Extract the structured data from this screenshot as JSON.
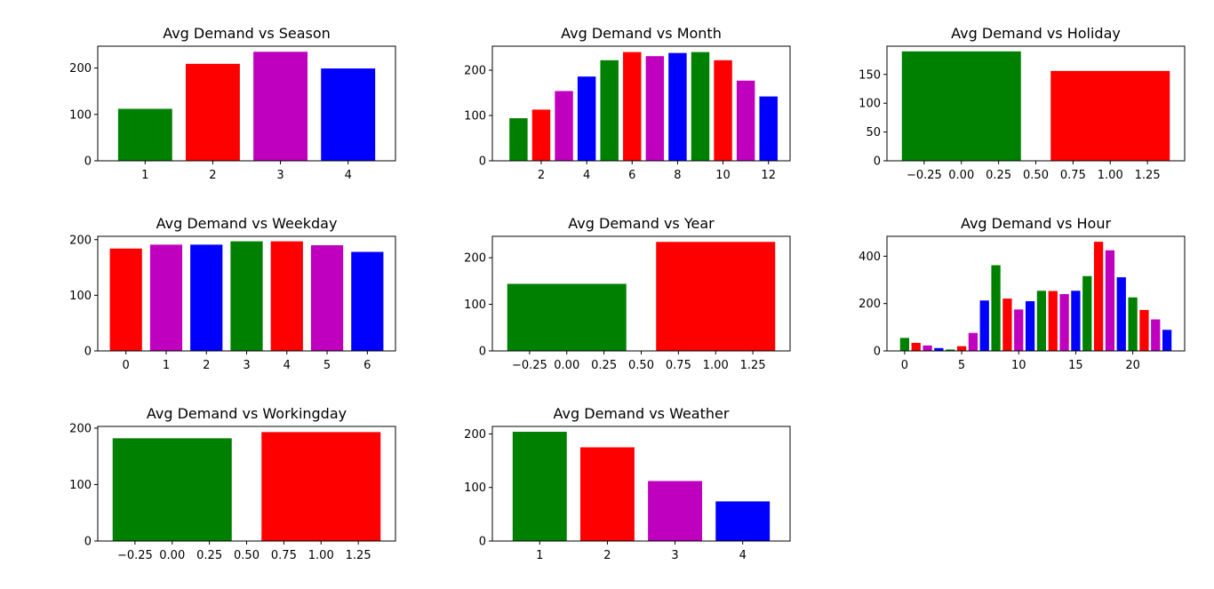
{
  "colors": {
    "green": "#008000",
    "red": "#ff0000",
    "magenta": "#bf00bf",
    "blue": "#0000ff"
  },
  "chart_data": [
    {
      "type": "bar",
      "title": "Avg Demand vs Season",
      "x": [
        1,
        2,
        3,
        4
      ],
      "values": [
        112,
        209,
        235,
        199
      ],
      "colors": [
        "green",
        "red",
        "magenta",
        "blue"
      ],
      "bar_width": 0.8,
      "xlim": [
        0.3,
        4.7
      ],
      "ylim": [
        0,
        247
      ],
      "xticks": [
        1,
        2,
        3,
        4
      ],
      "yticks": [
        0,
        100,
        200
      ],
      "grid": false
    },
    {
      "type": "bar",
      "title": "Avg Demand vs Month",
      "x": [
        1,
        2,
        3,
        4,
        5,
        6,
        7,
        8,
        9,
        10,
        11,
        12
      ],
      "values": [
        94,
        113,
        154,
        186,
        222,
        240,
        231,
        238,
        240,
        222,
        177,
        142
      ],
      "colors": [
        "green",
        "red",
        "magenta",
        "blue",
        "green",
        "red",
        "magenta",
        "blue",
        "green",
        "red",
        "magenta",
        "blue"
      ],
      "bar_width": 0.8,
      "xlim": [
        -0.15,
        12.95
      ],
      "ylim": [
        0,
        253
      ],
      "xticks": [
        2,
        4,
        6,
        8,
        10,
        12
      ],
      "yticks": [
        0,
        100,
        200
      ],
      "grid": false
    },
    {
      "type": "bar",
      "title": "Avg Demand vs Holiday",
      "x": [
        0,
        1
      ],
      "values": [
        190,
        156
      ],
      "colors": [
        "green",
        "red"
      ],
      "bar_width": 0.8,
      "xlim": [
        -0.5,
        1.5
      ],
      "ylim": [
        0,
        199
      ],
      "xticks": [
        -0.25,
        0.0,
        0.25,
        0.5,
        0.75,
        1.0,
        1.25
      ],
      "xtick_labels": [
        "−0.25",
        "0.00",
        "0.25",
        "0.50",
        "0.75",
        "1.00",
        "1.25"
      ],
      "yticks": [
        0,
        50,
        100,
        150
      ],
      "grid": false
    },
    {
      "type": "bar",
      "title": "Avg Demand vs Weekday",
      "x": [
        0,
        1,
        2,
        3,
        4,
        5,
        6
      ],
      "values": [
        184,
        191,
        191,
        197,
        197,
        190,
        178
      ],
      "colors": [
        "red",
        "magenta",
        "blue",
        "green",
        "red",
        "magenta",
        "blue"
      ],
      "bar_width": 0.8,
      "xlim": [
        -0.7,
        6.7
      ],
      "ylim": [
        0,
        206
      ],
      "xticks": [
        0,
        1,
        2,
        3,
        4,
        5,
        6
      ],
      "yticks": [
        0,
        100,
        200
      ],
      "grid": false
    },
    {
      "type": "bar",
      "title": "Avg Demand vs Year",
      "x": [
        0,
        1
      ],
      "values": [
        144,
        234
      ],
      "colors": [
        "green",
        "red"
      ],
      "bar_width": 0.8,
      "xlim": [
        -0.5,
        1.5
      ],
      "ylim": [
        0,
        246
      ],
      "xticks": [
        -0.25,
        0.0,
        0.25,
        0.5,
        0.75,
        1.0,
        1.25
      ],
      "xtick_labels": [
        "−0.25",
        "0.00",
        "0.25",
        "0.50",
        "0.75",
        "1.00",
        "1.25"
      ],
      "yticks": [
        0,
        100,
        200
      ],
      "grid": false
    },
    {
      "type": "bar",
      "title": "Avg Demand vs Hour",
      "x": [
        0,
        1,
        2,
        3,
        4,
        5,
        6,
        7,
        8,
        9,
        10,
        11,
        12,
        13,
        14,
        15,
        16,
        17,
        18,
        19,
        20,
        21,
        22,
        23
      ],
      "values": [
        55,
        34,
        23,
        12,
        6,
        20,
        76,
        213,
        362,
        221,
        175,
        210,
        254,
        253,
        240,
        254,
        316,
        461,
        425,
        311,
        226,
        173,
        133,
        89
      ],
      "colors": [
        "green",
        "red",
        "magenta",
        "blue",
        "green",
        "red",
        "magenta",
        "blue",
        "green",
        "red",
        "magenta",
        "blue",
        "green",
        "red",
        "magenta",
        "blue",
        "green",
        "red",
        "magenta",
        "blue",
        "green",
        "red",
        "magenta",
        "blue"
      ],
      "bar_width": 0.8,
      "xlim": [
        -1.55,
        24.55
      ],
      "ylim": [
        0,
        484
      ],
      "xticks": [
        0,
        5,
        10,
        15,
        20
      ],
      "yticks": [
        0,
        200,
        400
      ],
      "grid": false
    },
    {
      "type": "bar",
      "title": "Avg Demand vs Workingday",
      "x": [
        0,
        1
      ],
      "values": [
        182,
        193
      ],
      "colors": [
        "green",
        "red"
      ],
      "bar_width": 0.8,
      "xlim": [
        -0.5,
        1.5
      ],
      "ylim": [
        0,
        203
      ],
      "xticks": [
        -0.25,
        0.0,
        0.25,
        0.5,
        0.75,
        1.0,
        1.25
      ],
      "xtick_labels": [
        "−0.25",
        "0.00",
        "0.25",
        "0.50",
        "0.75",
        "1.00",
        "1.25"
      ],
      "yticks": [
        0,
        100,
        200
      ],
      "grid": false
    },
    {
      "type": "bar",
      "title": "Avg Demand vs Weather",
      "x": [
        1,
        2,
        3,
        4
      ],
      "values": [
        204,
        175,
        112,
        74
      ],
      "colors": [
        "green",
        "red",
        "magenta",
        "blue"
      ],
      "bar_width": 0.8,
      "xlim": [
        0.3,
        4.7
      ],
      "ylim": [
        0,
        214
      ],
      "xticks": [
        1,
        2,
        3,
        4
      ],
      "yticks": [
        0,
        100,
        200
      ],
      "grid": false
    }
  ]
}
